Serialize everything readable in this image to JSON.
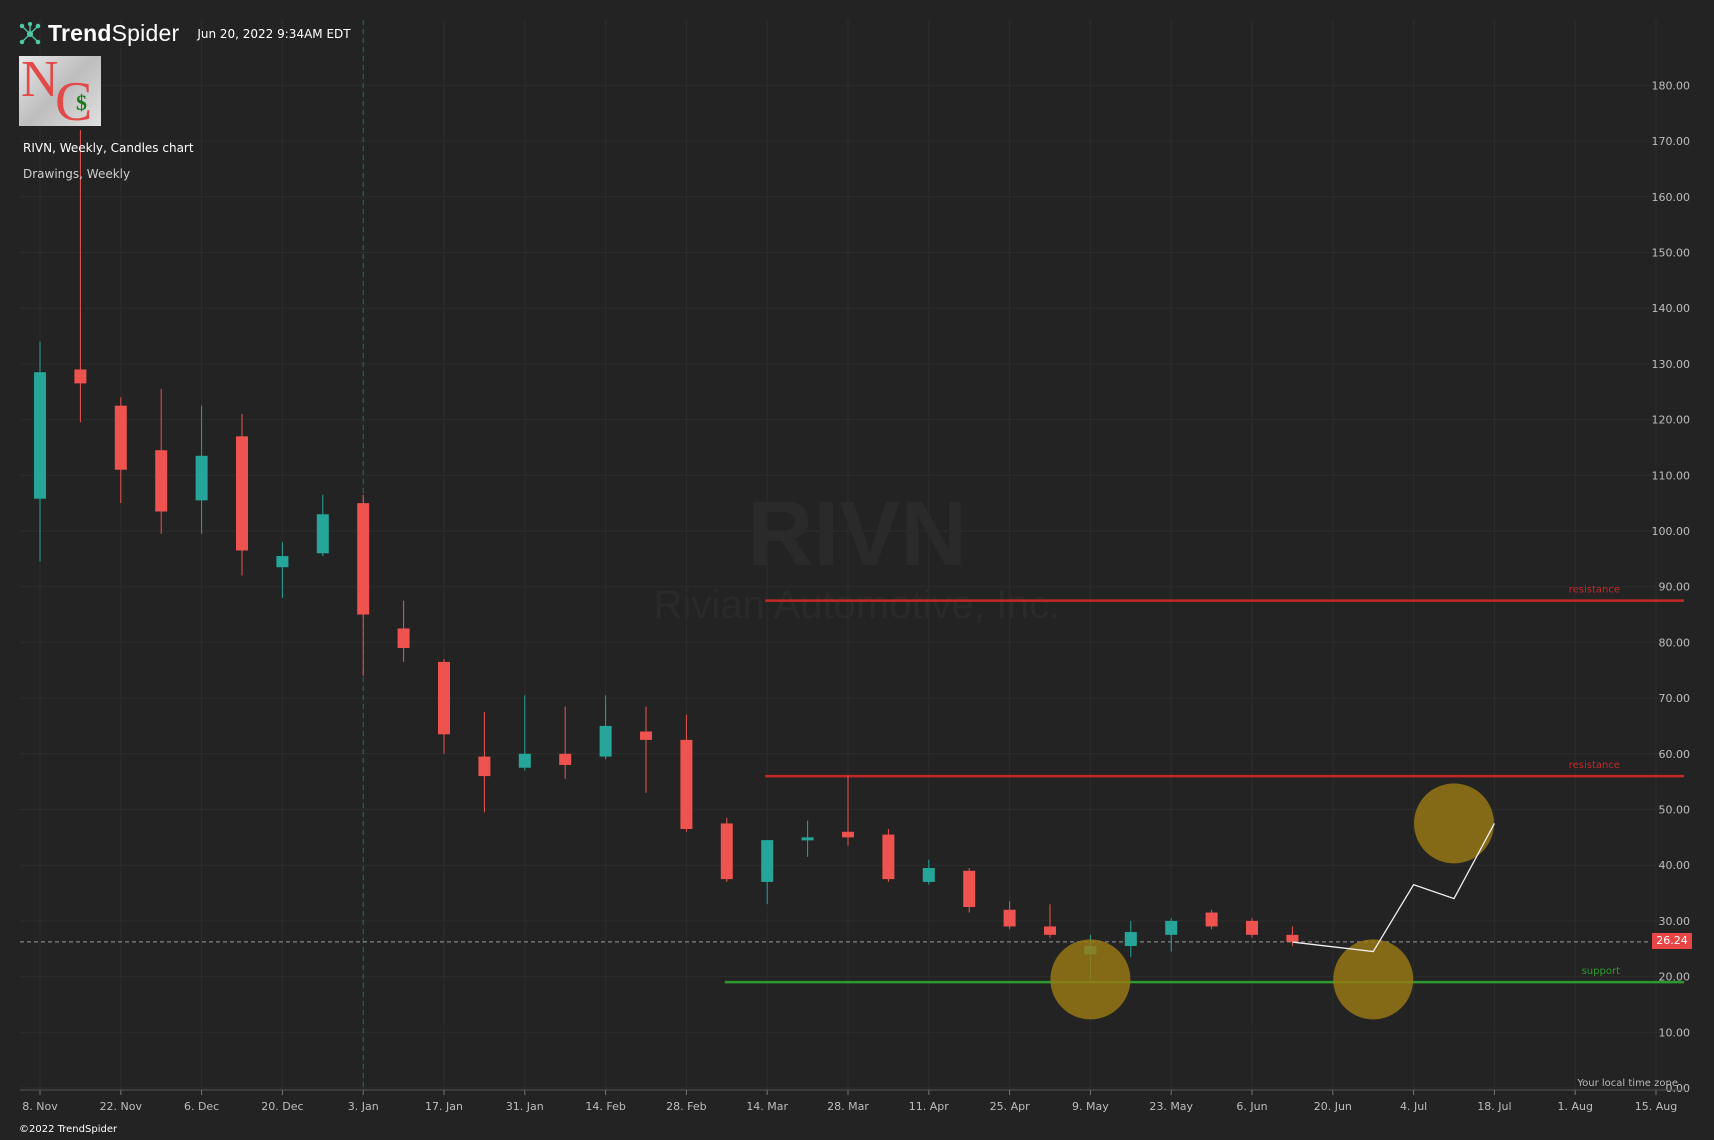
{
  "header": {
    "brand_prefix": "Trend",
    "brand_suffix": "Spider",
    "timestamp": "Jun 20, 2022 9:34AM EDT",
    "logo_text": {
      "n": "N",
      "c": "C",
      "dollar": "$"
    }
  },
  "chart_info": {
    "title": "RIVN, Weekly, Candles chart",
    "subtitle": "Drawings, Weekly"
  },
  "footer": {
    "copyright": "©2022 TrendSpider",
    "local_time_note": "Your local time zone"
  },
  "colors": {
    "background": "#232323",
    "up_candle": "#26a69a",
    "down_candle": "#ef5350",
    "resistance": "#c62828",
    "support": "#2e9a2e",
    "highlight_circle": "#9a7a14",
    "price_tag": "#e84646"
  },
  "chart_data": {
    "type": "candlestick",
    "watermark": {
      "symbol": "RIVN",
      "name": "Rivian Automotive, Inc."
    },
    "y_axis": {
      "range": [
        0,
        180
      ],
      "ticks": [
        "0.00",
        "10.00",
        "20.00",
        "30.00",
        "40.00",
        "50.00",
        "60.00",
        "70.00",
        "80.00",
        "90.00",
        "100.00",
        "110.00",
        "120.00",
        "130.00",
        "140.00",
        "150.00",
        "160.00",
        "170.00",
        "180.00"
      ],
      "grid": true
    },
    "x_axis": {
      "tick_labels": [
        "8. Nov",
        "22. Nov",
        "6. Dec",
        "20. Dec",
        "3. Jan",
        "17. Jan",
        "31. Jan",
        "14. Feb",
        "28. Feb",
        "14. Mar",
        "28. Mar",
        "11. Apr",
        "25. Apr",
        "9. May",
        "23. May",
        "6. Jun",
        "20. Jun",
        "4. Jul",
        "18. Jul",
        "1. Aug",
        "15. Aug"
      ],
      "grid": true
    },
    "current_price": "26.24",
    "candles": [
      {
        "week": "8. Nov",
        "o": 105.8,
        "h": 134.0,
        "l": 94.5,
        "c": 128.5
      },
      {
        "week": "15. Nov",
        "o": 129.0,
        "h": 172.0,
        "l": 119.5,
        "c": 126.5
      },
      {
        "week": "22. Nov",
        "o": 122.5,
        "h": 124.0,
        "l": 105.0,
        "c": 111.0
      },
      {
        "week": "29. Nov",
        "o": 114.5,
        "h": 125.5,
        "l": 99.5,
        "c": 103.5
      },
      {
        "week": "6. Dec",
        "o": 105.5,
        "h": 122.5,
        "l": 99.5,
        "c": 113.5
      },
      {
        "week": "13. Dec",
        "o": 117.0,
        "h": 121.0,
        "l": 92.0,
        "c": 96.5
      },
      {
        "week": "20. Dec",
        "o": 93.5,
        "h": 98.0,
        "l": 88.0,
        "c": 95.5
      },
      {
        "week": "27. Dec",
        "o": 96.0,
        "h": 106.5,
        "l": 95.5,
        "c": 103.0
      },
      {
        "week": "3. Jan",
        "o": 105.0,
        "h": 106.5,
        "l": 74.0,
        "c": 85.0
      },
      {
        "week": "10. Jan",
        "o": 82.5,
        "h": 87.5,
        "l": 76.5,
        "c": 79.0
      },
      {
        "week": "17. Jan",
        "o": 76.5,
        "h": 77.0,
        "l": 60.0,
        "c": 63.5
      },
      {
        "week": "24. Jan",
        "o": 59.5,
        "h": 67.5,
        "l": 49.5,
        "c": 56.0
      },
      {
        "week": "31. Jan",
        "o": 57.5,
        "h": 70.5,
        "l": 57.0,
        "c": 60.0
      },
      {
        "week": "7. Feb",
        "o": 60.0,
        "h": 68.5,
        "l": 55.5,
        "c": 58.0
      },
      {
        "week": "14. Feb",
        "o": 59.5,
        "h": 70.5,
        "l": 59.0,
        "c": 65.0
      },
      {
        "week": "21. Feb",
        "o": 64.0,
        "h": 68.5,
        "l": 53.0,
        "c": 62.5
      },
      {
        "week": "28. Feb",
        "o": 62.5,
        "h": 67.0,
        "l": 46.0,
        "c": 46.5
      },
      {
        "week": "7. Mar",
        "o": 47.5,
        "h": 48.5,
        "l": 37.0,
        "c": 37.5
      },
      {
        "week": "14. Mar",
        "o": 37.0,
        "h": 44.5,
        "l": 33.0,
        "c": 44.5
      },
      {
        "week": "21. Mar",
        "o": 44.5,
        "h": 48.0,
        "l": 41.5,
        "c": 45.0
      },
      {
        "week": "28. Mar",
        "o": 46.0,
        "h": 56.0,
        "l": 43.5,
        "c": 45.0
      },
      {
        "week": "4. Apr",
        "o": 45.5,
        "h": 46.5,
        "l": 37.0,
        "c": 37.5
      },
      {
        "week": "11. Apr",
        "o": 37.0,
        "h": 41.0,
        "l": 36.5,
        "c": 39.5
      },
      {
        "week": "18. Apr",
        "o": 39.0,
        "h": 39.5,
        "l": 31.5,
        "c": 32.5
      },
      {
        "week": "25. Apr",
        "o": 32.0,
        "h": 33.5,
        "l": 28.5,
        "c": 29.0
      },
      {
        "week": "2. May",
        "o": 29.0,
        "h": 33.0,
        "l": 27.0,
        "c": 27.5
      },
      {
        "week": "9. May",
        "o": 24.0,
        "h": 27.5,
        "l": 19.5,
        "c": 25.5
      },
      {
        "week": "16. May",
        "o": 25.5,
        "h": 30.0,
        "l": 23.5,
        "c": 28.0
      },
      {
        "week": "23. May",
        "o": 27.5,
        "h": 30.5,
        "l": 24.5,
        "c": 30.0
      },
      {
        "week": "30. May",
        "o": 31.5,
        "h": 32.0,
        "l": 28.5,
        "c": 29.0
      },
      {
        "week": "6. Jun",
        "o": 30.0,
        "h": 30.5,
        "l": 27.0,
        "c": 27.5
      },
      {
        "week": "13. Jun",
        "o": 27.5,
        "h": 29.0,
        "l": 25.5,
        "c": 26.24
      }
    ],
    "levels": [
      {
        "label": "resistance",
        "value": 87.5,
        "from_week": "14. Mar",
        "color": "#c62828"
      },
      {
        "label": "resistance",
        "value": 56.0,
        "from_week": "14. Mar",
        "color": "#c62828"
      },
      {
        "label": "support",
        "value": 19.0,
        "from_week": "7. Mar",
        "color": "#2e9a2e"
      }
    ],
    "projection_path": [
      {
        "week": "13. Jun",
        "value": 26.2
      },
      {
        "week": "27. Jun",
        "value": 24.5
      },
      {
        "week": "4. Jul",
        "value": 36.5
      },
      {
        "week": "11. Jul",
        "value": 34.0
      },
      {
        "week": "18. Jul",
        "value": 47.5
      }
    ],
    "highlight_circles": [
      {
        "week": "9. May",
        "value": 19.5
      },
      {
        "week": "27. Jun",
        "value": 19.5
      },
      {
        "week": "11. Jul",
        "value": 47.5
      }
    ],
    "vertical_marker_week": "3. Jan"
  }
}
